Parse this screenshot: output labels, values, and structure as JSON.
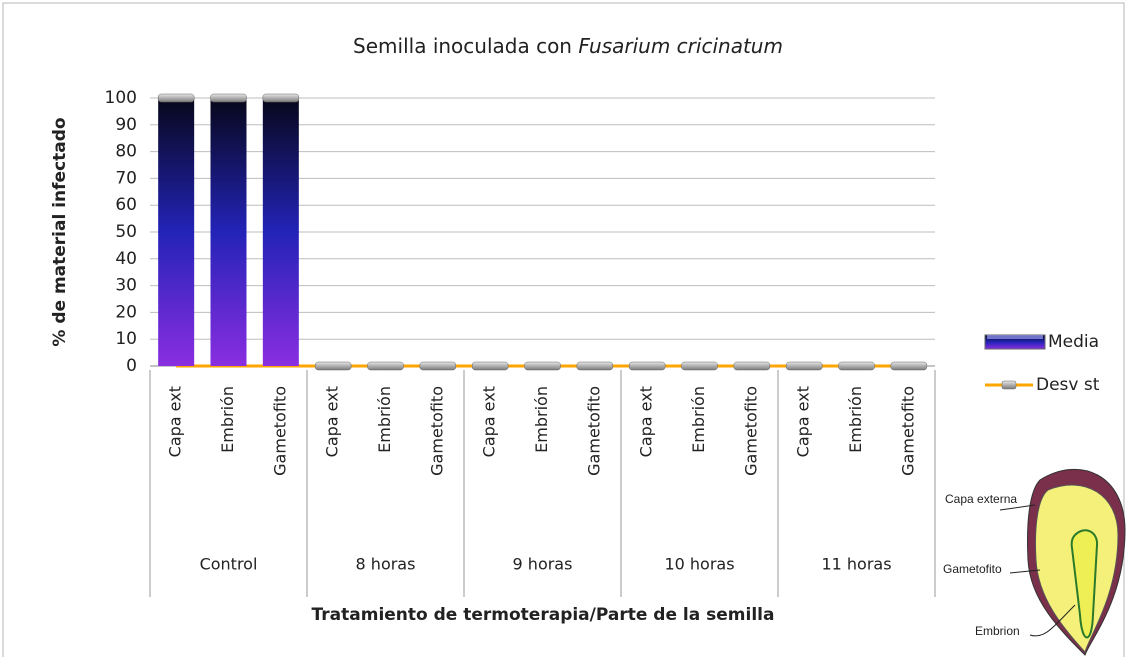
{
  "chart_data": {
    "type": "bar",
    "title": "Semilla inoculada con",
    "title_italic": "Fusarium cricinatum",
    "y_label": "% de material infectado",
    "x_label": "Tratamiento de termoterapia/Parte de la semilla",
    "categories": [
      "Capa ext",
      "Embrión",
      "Gametofito",
      "Capa ext",
      "Embrión",
      "Gametofito",
      "Capa ext",
      "Embrión",
      "Gametofito",
      "Capa ext",
      "Embrión",
      "Gametofito",
      "Capa ext",
      "Embrión",
      "Gametofito"
    ],
    "groups": [
      "Control",
      "8 horas",
      "9 horas",
      "10 horas",
      "11 horas"
    ],
    "series": [
      {
        "name": "Media",
        "type": "bar",
        "gradient": [
          "#07071a",
          "#2323b8",
          "#8a2ee0"
        ],
        "values": [
          100,
          100,
          100,
          0,
          0,
          0,
          0,
          0,
          0,
          0,
          0,
          0,
          0,
          0,
          0
        ]
      },
      {
        "name": "Desv st",
        "type": "line",
        "color": "#ffa500",
        "values": [
          0,
          0,
          0,
          0,
          0,
          0,
          0,
          0,
          0,
          0,
          0,
          0,
          0,
          0,
          0
        ]
      }
    ],
    "ylim": [
      0,
      100
    ],
    "yticks": [
      0,
      10,
      20,
      30,
      40,
      50,
      60,
      70,
      80,
      90,
      100
    ],
    "grid": true,
    "legend": "right"
  },
  "inset": {
    "labels": [
      "Capa externa",
      "Gametofito",
      "Embrion"
    ]
  }
}
